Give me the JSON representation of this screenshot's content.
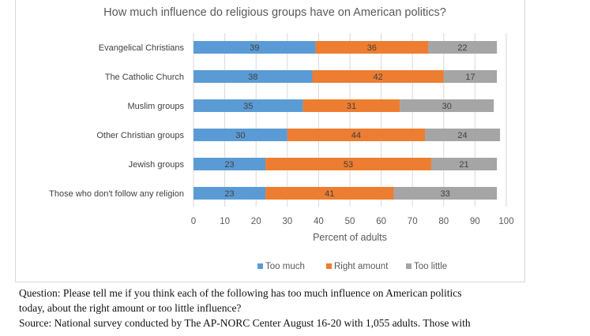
{
  "chart_data": {
    "type": "bar",
    "orientation": "horizontal",
    "stacked": true,
    "title": "How much influence do religious groups have on American politics?",
    "xlabel": "Percent of adults",
    "ylabel": "",
    "xlim": [
      0,
      100
    ],
    "xticks": [
      0,
      10,
      20,
      30,
      40,
      50,
      60,
      70,
      80,
      90,
      100
    ],
    "categories": [
      "Evangelical Christians",
      "The Catholic Church",
      "Muslim groups",
      "Other Christian groups",
      "Jewish groups",
      "Those who don't follow any religion"
    ],
    "series": [
      {
        "name": "Too much",
        "color": "#5b9bd5",
        "values": [
          39,
          38,
          35,
          30,
          23,
          23
        ]
      },
      {
        "name": "Right amount",
        "color": "#ed7d31",
        "values": [
          36,
          42,
          31,
          44,
          53,
          41
        ]
      },
      {
        "name": "Too little",
        "color": "#a5a5a5",
        "values": [
          22,
          17,
          30,
          24,
          21,
          33
        ]
      }
    ],
    "grid": true,
    "legend_position": "bottom"
  },
  "caption": {
    "question_line1": "Question: Please tell me if you think each of the following has too much influence on American politics",
    "question_line2": "today, about the right amount or too little influence?",
    "source_line1": "Source: National survey conducted by The AP-NORC Center August 16-20 with 1,055 adults. Those with"
  }
}
